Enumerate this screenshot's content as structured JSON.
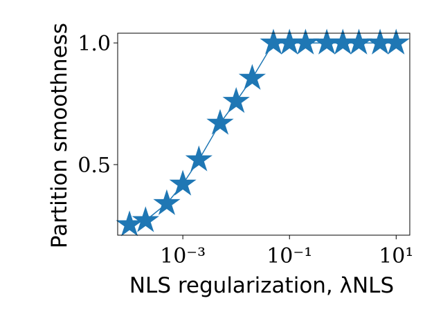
{
  "chart_data": {
    "type": "line",
    "xlabel": "NLS regularization, λNLS",
    "ylabel": "Partition smoothness",
    "x": [
      0.0001,
      0.0002,
      0.0005,
      0.001,
      0.002,
      0.005,
      0.01,
      0.02,
      0.05,
      0.1,
      0.2,
      0.5,
      1,
      2,
      5,
      10
    ],
    "series": [
      {
        "color": "#1f77b4",
        "values": [
          0.253,
          0.27,
          0.34,
          0.42,
          0.52,
          0.67,
          0.76,
          0.855,
          1.0,
          1.0,
          1.0,
          1.0,
          1.0,
          1.0,
          1.0,
          1.0
        ]
      }
    ],
    "xscale": "log",
    "xlim": [
      6e-05,
      18
    ],
    "ylim": [
      0.21,
      1.04
    ],
    "xticks": [
      {
        "value": 0.001,
        "label": "10⁻³"
      },
      {
        "value": 0.1,
        "label": "10⁻¹"
      },
      {
        "value": 10,
        "label": "10¹"
      }
    ],
    "yticks": [
      {
        "value": 0.5,
        "label": "0.5"
      },
      {
        "value": 1.0,
        "label": "1.0"
      }
    ],
    "marker": "star"
  }
}
